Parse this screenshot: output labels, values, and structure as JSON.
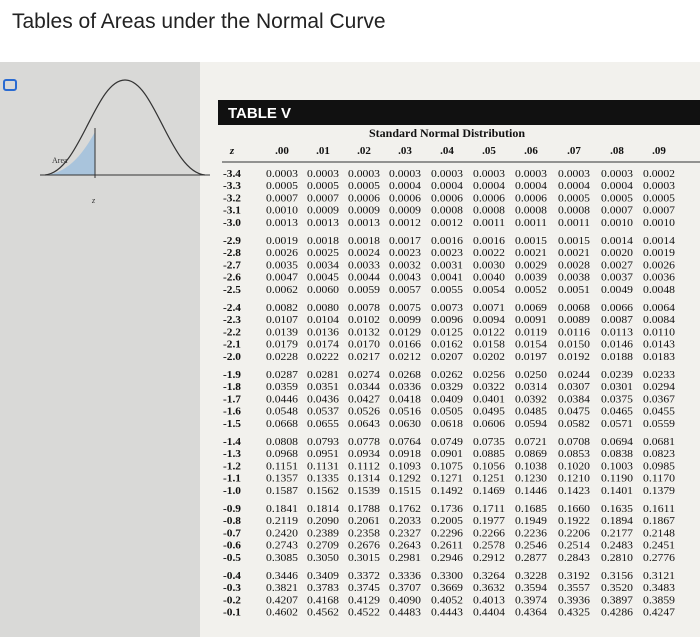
{
  "header": {
    "title": "Tables of Areas under the Normal Curve"
  },
  "figure": {
    "area_label": "Area",
    "z_label": "z"
  },
  "table": {
    "name": "TABLE V",
    "caption": "Standard Normal Distribution",
    "columns": [
      "z",
      ".00",
      ".01",
      ".02",
      ".03",
      ".04",
      ".05",
      ".06",
      ".07",
      ".08",
      ".09"
    ],
    "rows": [
      [
        "-3.4",
        "0.0003",
        "0.0003",
        "0.0003",
        "0.0003",
        "0.0003",
        "0.0003",
        "0.0003",
        "0.0003",
        "0.0003",
        "0.0002"
      ],
      [
        "-3.3",
        "0.0005",
        "0.0005",
        "0.0005",
        "0.0004",
        "0.0004",
        "0.0004",
        "0.0004",
        "0.0004",
        "0.0004",
        "0.0003"
      ],
      [
        "-3.2",
        "0.0007",
        "0.0007",
        "0.0006",
        "0.0006",
        "0.0006",
        "0.0006",
        "0.0006",
        "0.0005",
        "0.0005",
        "0.0005"
      ],
      [
        "-3.1",
        "0.0010",
        "0.0009",
        "0.0009",
        "0.0009",
        "0.0008",
        "0.0008",
        "0.0008",
        "0.0008",
        "0.0007",
        "0.0007"
      ],
      [
        "-3.0",
        "0.0013",
        "0.0013",
        "0.0013",
        "0.0012",
        "0.0012",
        "0.0011",
        "0.0011",
        "0.0011",
        "0.0010",
        "0.0010"
      ],
      [
        "-2.9",
        "0.0019",
        "0.0018",
        "0.0018",
        "0.0017",
        "0.0016",
        "0.0016",
        "0.0015",
        "0.0015",
        "0.0014",
        "0.0014"
      ],
      [
        "-2.8",
        "0.0026",
        "0.0025",
        "0.0024",
        "0.0023",
        "0.0023",
        "0.0022",
        "0.0021",
        "0.0021",
        "0.0020",
        "0.0019"
      ],
      [
        "-2.7",
        "0.0035",
        "0.0034",
        "0.0033",
        "0.0032",
        "0.0031",
        "0.0030",
        "0.0029",
        "0.0028",
        "0.0027",
        "0.0026"
      ],
      [
        "-2.6",
        "0.0047",
        "0.0045",
        "0.0044",
        "0.0043",
        "0.0041",
        "0.0040",
        "0.0039",
        "0.0038",
        "0.0037",
        "0.0036"
      ],
      [
        "-2.5",
        "0.0062",
        "0.0060",
        "0.0059",
        "0.0057",
        "0.0055",
        "0.0054",
        "0.0052",
        "0.0051",
        "0.0049",
        "0.0048"
      ],
      [
        "-2.4",
        "0.0082",
        "0.0080",
        "0.0078",
        "0.0075",
        "0.0073",
        "0.0071",
        "0.0069",
        "0.0068",
        "0.0066",
        "0.0064"
      ],
      [
        "-2.3",
        "0.0107",
        "0.0104",
        "0.0102",
        "0.0099",
        "0.0096",
        "0.0094",
        "0.0091",
        "0.0089",
        "0.0087",
        "0.0084"
      ],
      [
        "-2.2",
        "0.0139",
        "0.0136",
        "0.0132",
        "0.0129",
        "0.0125",
        "0.0122",
        "0.0119",
        "0.0116",
        "0.0113",
        "0.0110"
      ],
      [
        "-2.1",
        "0.0179",
        "0.0174",
        "0.0170",
        "0.0166",
        "0.0162",
        "0.0158",
        "0.0154",
        "0.0150",
        "0.0146",
        "0.0143"
      ],
      [
        "-2.0",
        "0.0228",
        "0.0222",
        "0.0217",
        "0.0212",
        "0.0207",
        "0.0202",
        "0.0197",
        "0.0192",
        "0.0188",
        "0.0183"
      ],
      [
        "-1.9",
        "0.0287",
        "0.0281",
        "0.0274",
        "0.0268",
        "0.0262",
        "0.0256",
        "0.0250",
        "0.0244",
        "0.0239",
        "0.0233"
      ],
      [
        "-1.8",
        "0.0359",
        "0.0351",
        "0.0344",
        "0.0336",
        "0.0329",
        "0.0322",
        "0.0314",
        "0.0307",
        "0.0301",
        "0.0294"
      ],
      [
        "-1.7",
        "0.0446",
        "0.0436",
        "0.0427",
        "0.0418",
        "0.0409",
        "0.0401",
        "0.0392",
        "0.0384",
        "0.0375",
        "0.0367"
      ],
      [
        "-1.6",
        "0.0548",
        "0.0537",
        "0.0526",
        "0.0516",
        "0.0505",
        "0.0495",
        "0.0485",
        "0.0475",
        "0.0465",
        "0.0455"
      ],
      [
        "-1.5",
        "0.0668",
        "0.0655",
        "0.0643",
        "0.0630",
        "0.0618",
        "0.0606",
        "0.0594",
        "0.0582",
        "0.0571",
        "0.0559"
      ],
      [
        "-1.4",
        "0.0808",
        "0.0793",
        "0.0778",
        "0.0764",
        "0.0749",
        "0.0735",
        "0.0721",
        "0.0708",
        "0.0694",
        "0.0681"
      ],
      [
        "-1.3",
        "0.0968",
        "0.0951",
        "0.0934",
        "0.0918",
        "0.0901",
        "0.0885",
        "0.0869",
        "0.0853",
        "0.0838",
        "0.0823"
      ],
      [
        "-1.2",
        "0.1151",
        "0.1131",
        "0.1112",
        "0.1093",
        "0.1075",
        "0.1056",
        "0.1038",
        "0.1020",
        "0.1003",
        "0.0985"
      ],
      [
        "-1.1",
        "0.1357",
        "0.1335",
        "0.1314",
        "0.1292",
        "0.1271",
        "0.1251",
        "0.1230",
        "0.1210",
        "0.1190",
        "0.1170"
      ],
      [
        "-1.0",
        "0.1587",
        "0.1562",
        "0.1539",
        "0.1515",
        "0.1492",
        "0.1469",
        "0.1446",
        "0.1423",
        "0.1401",
        "0.1379"
      ],
      [
        "-0.9",
        "0.1841",
        "0.1814",
        "0.1788",
        "0.1762",
        "0.1736",
        "0.1711",
        "0.1685",
        "0.1660",
        "0.1635",
        "0.1611"
      ],
      [
        "-0.8",
        "0.2119",
        "0.2090",
        "0.2061",
        "0.2033",
        "0.2005",
        "0.1977",
        "0.1949",
        "0.1922",
        "0.1894",
        "0.1867"
      ],
      [
        "-0.7",
        "0.2420",
        "0.2389",
        "0.2358",
        "0.2327",
        "0.2296",
        "0.2266",
        "0.2236",
        "0.2206",
        "0.2177",
        "0.2148"
      ],
      [
        "-0.6",
        "0.2743",
        "0.2709",
        "0.2676",
        "0.2643",
        "0.2611",
        "0.2578",
        "0.2546",
        "0.2514",
        "0.2483",
        "0.2451"
      ],
      [
        "-0.5",
        "0.3085",
        "0.3050",
        "0.3015",
        "0.2981",
        "0.2946",
        "0.2912",
        "0.2877",
        "0.2843",
        "0.2810",
        "0.2776"
      ],
      [
        "-0.4",
        "0.3446",
        "0.3409",
        "0.3372",
        "0.3336",
        "0.3300",
        "0.3264",
        "0.3228",
        "0.3192",
        "0.3156",
        "0.3121"
      ],
      [
        "-0.3",
        "0.3821",
        "0.3783",
        "0.3745",
        "0.3707",
        "0.3669",
        "0.3632",
        "0.3594",
        "0.3557",
        "0.3520",
        "0.3483"
      ],
      [
        "-0.2",
        "0.4207",
        "0.4168",
        "0.4129",
        "0.4090",
        "0.4052",
        "0.4013",
        "0.3974",
        "0.3936",
        "0.3897",
        "0.3859"
      ],
      [
        "-0.1",
        "0.4602",
        "0.4562",
        "0.4522",
        "0.4483",
        "0.4443",
        "0.4404",
        "0.4364",
        "0.4325",
        "0.4286",
        "0.4247"
      ]
    ]
  }
}
